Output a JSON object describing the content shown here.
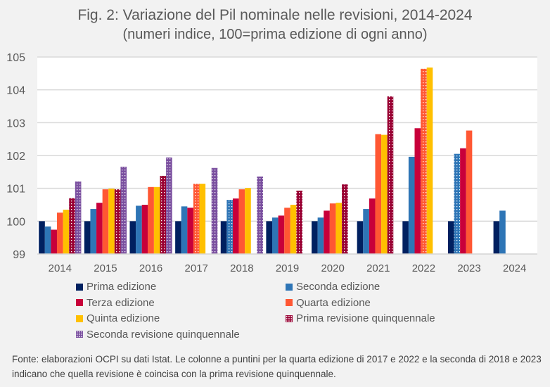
{
  "chart_data": {
    "type": "bar",
    "title": "Fig. 2: Variazione del Pil nominale nelle revisioni, 2014-2024",
    "subtitle": "(numeri indice, 100=prima edizione di ogni anno)",
    "xlabel": "",
    "ylabel": "",
    "ylim": [
      99,
      105
    ],
    "yticks": [
      "99",
      "100",
      "101",
      "102",
      "103",
      "104",
      "105"
    ],
    "grid": true,
    "legend_placement": "bottom",
    "categories": [
      "2014",
      "2015",
      "2016",
      "2017",
      "2018",
      "2019",
      "2020",
      "2021",
      "2022",
      "2023",
      "2024"
    ],
    "series": [
      {
        "name": "Prima edizione",
        "color": "#002060",
        "values": [
          100,
          100,
          100,
          100,
          100,
          100,
          100,
          100,
          100,
          100,
          100
        ]
      },
      {
        "name": "Seconda edizione",
        "color": "#2e75b6",
        "values": [
          99.84,
          100.37,
          100.47,
          100.45,
          100.65,
          100.11,
          100.11,
          100.37,
          101.96,
          102.05,
          100.32
        ],
        "dotted": [
          false,
          false,
          false,
          false,
          true,
          false,
          false,
          false,
          false,
          true,
          false
        ]
      },
      {
        "name": "Terza edizione",
        "color": "#c8003a",
        "values": [
          99.74,
          100.56,
          100.5,
          100.41,
          100.69,
          100.17,
          100.32,
          100.69,
          102.83,
          102.22,
          null
        ]
      },
      {
        "name": "Quarta edizione",
        "color": "#ff5733",
        "values": [
          100.26,
          100.97,
          101.04,
          101.14,
          100.97,
          100.41,
          100.54,
          102.65,
          104.64,
          102.76,
          null
        ],
        "dotted": [
          false,
          false,
          false,
          true,
          false,
          false,
          false,
          false,
          true,
          false,
          false
        ]
      },
      {
        "name": "Quinta edizione",
        "color": "#ffc000",
        "values": [
          100.35,
          100.99,
          101.04,
          101.14,
          101.01,
          100.5,
          100.56,
          102.63,
          104.68,
          null,
          null
        ]
      },
      {
        "name": "Prima revisione quinquennale",
        "color": "#990033",
        "pattern": true,
        "values": [
          100.7,
          100.97,
          101.38,
          null,
          null,
          100.93,
          101.12,
          103.8,
          null,
          null,
          null
        ]
      },
      {
        "name": "Seconda revisione quinquennale",
        "color": "#7a4f9f",
        "pattern": true,
        "values": [
          101.21,
          101.66,
          101.94,
          101.62,
          101.36,
          null,
          null,
          null,
          null,
          null,
          null
        ]
      }
    ]
  },
  "source": "Fonte: elaborazioni OCPI su dati Istat. Le colonne a puntini per la quarta edizione di 2017 e 2022 e la seconda di 2018 e 2023 indicano che quella revisione è coincisa con la prima revisione quinquennale."
}
